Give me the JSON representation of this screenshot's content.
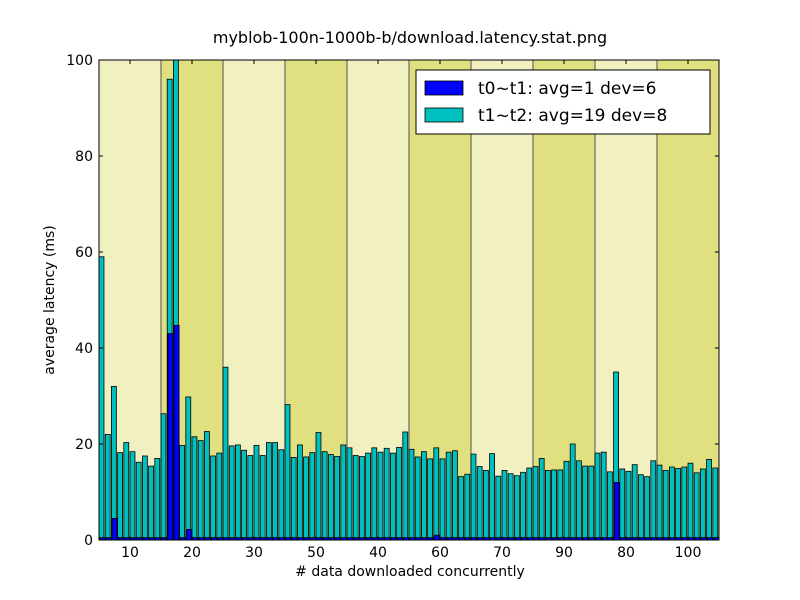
{
  "chart_data": {
    "type": "bar",
    "title": "myblob-100n-1000b-b/download.latency.stat.png",
    "xlabel": "# data downloaded concurrently",
    "ylabel": "average latency (ms)",
    "categories": [
      null,
      null,
      null,
      null,
      null,
      "10",
      null,
      null,
      null,
      null,
      null,
      null,
      null,
      null,
      null,
      "20",
      null,
      null,
      null,
      null,
      null,
      null,
      null,
      null,
      null,
      "30",
      null,
      null,
      null,
      null,
      null,
      null,
      null,
      null,
      null,
      "50",
      null,
      null,
      null,
      null,
      null,
      null,
      null,
      null,
      null,
      "40",
      null,
      null,
      null,
      null,
      null,
      null,
      null,
      null,
      null,
      "60",
      null,
      null,
      null,
      null,
      null,
      null,
      null,
      null,
      null,
      "70",
      null,
      null,
      null,
      null,
      null,
      null,
      null,
      null,
      null,
      "90",
      null,
      null,
      null,
      null,
      null,
      null,
      null,
      null,
      null,
      "80",
      null,
      null,
      null,
      null,
      null,
      null,
      null,
      null,
      null,
      "100",
      null,
      null,
      null,
      null
    ],
    "series": [
      {
        "name": "t0~t1: avg=1 dev=6",
        "color": "#0000ff",
        "values": [
          0.5,
          0.5,
          4.5,
          0.5,
          0.5,
          0.5,
          0.5,
          0.5,
          0.5,
          0.5,
          0.5,
          43,
          44.7,
          0.5,
          2.2,
          0.5,
          0.5,
          0.5,
          0.5,
          0.5,
          0.5,
          0.5,
          0.5,
          0.5,
          0.5,
          0.5,
          0.5,
          0.5,
          0.5,
          0.5,
          0.5,
          0.5,
          0.5,
          0.5,
          0.5,
          0.5,
          0.5,
          0.5,
          0.5,
          0.5,
          0.5,
          0.5,
          0.5,
          0.5,
          0.5,
          0.5,
          0.5,
          0.5,
          0.5,
          0.5,
          0.5,
          0.5,
          0.5,
          0.5,
          1,
          0.5,
          0.5,
          0.5,
          0.5,
          0.5,
          0.5,
          0.5,
          0.5,
          0.5,
          0.5,
          0.5,
          0.5,
          0.5,
          0.5,
          0.5,
          0.5,
          0.5,
          0.5,
          0.5,
          0.5,
          0.5,
          0.5,
          0.5,
          0.5,
          0.5,
          0.5,
          0.5,
          0.5,
          12,
          0.5,
          0.5,
          0.5,
          0.5,
          0.5,
          0.5,
          0.5,
          0.5,
          0.5,
          0.5,
          0.5,
          0.5,
          0.5,
          0.5,
          0.5,
          0.5
        ]
      },
      {
        "name": "t1~t2: avg=19 dev=8",
        "color": "#00bfbf",
        "values": [
          59,
          22,
          32,
          18.2,
          20.3,
          18.4,
          16.2,
          17.5,
          15.4,
          17,
          26.3,
          96,
          100,
          19.7,
          29.8,
          21.5,
          20.7,
          22.6,
          17.5,
          18.1,
          36,
          19.6,
          19.8,
          18.7,
          17.6,
          19.7,
          17.6,
          20.3,
          20.3,
          18.8,
          28.2,
          17.2,
          19.8,
          17.3,
          18.2,
          22.4,
          18.4,
          17.8,
          17.4,
          19.8,
          19.2,
          17.6,
          17.4,
          18.1,
          19.2,
          18.3,
          19.1,
          18.1,
          19.3,
          22.5,
          18.9,
          17.3,
          18.4,
          16.9,
          19.2,
          16.9,
          18.3,
          18.6,
          13.2,
          13.7,
          17.9,
          15.3,
          14.5,
          18,
          13.3,
          14.5,
          13.8,
          13.4,
          14.1,
          15,
          15.3,
          17,
          14.5,
          14.6,
          14.6,
          16.4,
          20,
          16.5,
          15.4,
          15.4,
          18.1,
          18.3,
          14.2,
          35,
          14.8,
          14.3,
          15.7,
          13.6,
          13.2,
          16.5,
          15.6,
          14.5,
          15.2,
          14.9,
          15.2,
          16,
          14,
          14.8,
          16.8,
          15
        ]
      }
    ],
    "bands": [
      {
        "start": 0,
        "end": 10,
        "color": "#f0f0c0"
      },
      {
        "start": 10,
        "end": 20,
        "color": "#e0e080"
      },
      {
        "start": 20,
        "end": 30,
        "color": "#f0f0c0"
      },
      {
        "start": 30,
        "end": 40,
        "color": "#e0e080"
      },
      {
        "start": 40,
        "end": 50,
        "color": "#f0f0c0"
      },
      {
        "start": 50,
        "end": 60,
        "color": "#e0e080"
      },
      {
        "start": 60,
        "end": 70,
        "color": "#f0f0c0"
      },
      {
        "start": 70,
        "end": 80,
        "color": "#e0e080"
      },
      {
        "start": 80,
        "end": 90,
        "color": "#f0f0c0"
      },
      {
        "start": 90,
        "end": 100,
        "color": "#e0e080"
      }
    ],
    "ylim": [
      0,
      100
    ],
    "yticks": [
      0,
      20,
      40,
      60,
      80,
      100
    ],
    "legend": "upper right"
  }
}
